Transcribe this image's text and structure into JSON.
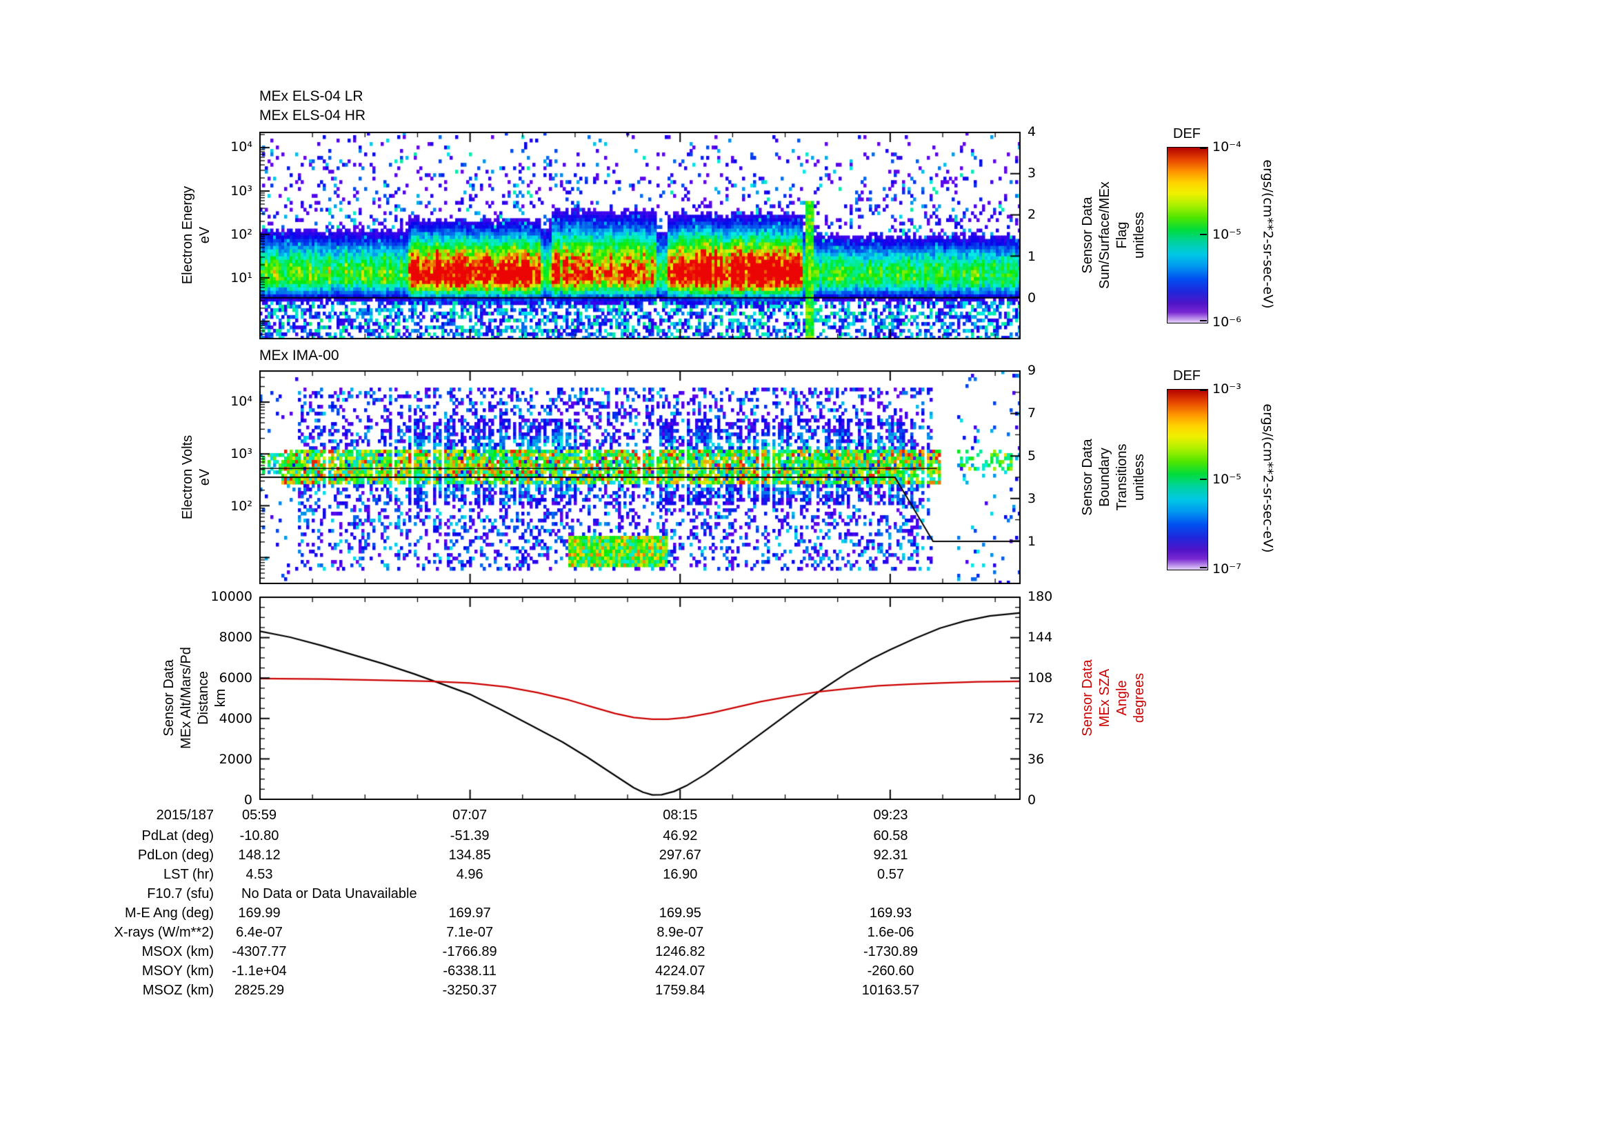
{
  "page": {
    "background": "#ffffff"
  },
  "colors": {
    "axis": "#000000",
    "sza_red": "#cc0000"
  },
  "panel_els": {
    "title_lines": [
      "MEx ELS-04 LR",
      "MEx ELS-04 HR"
    ],
    "y_label": "Electron Energy\neV",
    "y_ticks": [
      {
        "label": "10⁴",
        "log": 4
      },
      {
        "label": "10³",
        "log": 3
      },
      {
        "label": "10²",
        "log": 2
      },
      {
        "label": "10¹",
        "log": 1
      }
    ],
    "right_label": "Sensor Data\nSun/Surface/MEx\nFlag\nunitless",
    "right_ticks": [
      4,
      3,
      2,
      1,
      0
    ]
  },
  "panel_ima": {
    "title": "MEx IMA-00",
    "y_label": "Electron Volts\neV",
    "y_ticks": [
      {
        "label": "10⁴",
        "log": 4
      },
      {
        "label": "10³",
        "log": 3
      },
      {
        "label": "10²",
        "log": 2
      }
    ],
    "right_label": "Sensor Data\nBoundary\nTransitions\nunitless",
    "right_ticks": [
      9,
      7,
      5,
      3,
      1
    ]
  },
  "panel_line": {
    "y_label": "Sensor Data\nMEx Alt/Mars/Pd\nDistance\nkm",
    "y_ticks": [
      10000,
      8000,
      6000,
      4000,
      2000,
      0
    ],
    "right_label": "Sensor Data\nMEx SZA\nAngle\ndegrees",
    "right_ticks": [
      180,
      144,
      108,
      72,
      36,
      0
    ]
  },
  "colorbar_els": {
    "title": "DEF",
    "ticks": [
      "10⁻⁴",
      "10⁻⁵",
      "10⁻⁶"
    ],
    "unit": "ergs/(cm**2-sr-sec-eV)"
  },
  "colorbar_ima": {
    "title": "DEF",
    "ticks": [
      "10⁻³",
      "10⁻⁵",
      "10⁻⁷"
    ],
    "unit": "ergs/(cm**2-sr-sec-eV)"
  },
  "xaxis": {
    "date": "2015/187",
    "tick_labels": [
      "05:59",
      "07:07",
      "08:15",
      "09:23"
    ],
    "tick_minutes": [
      0,
      68,
      136,
      204
    ],
    "minor_step_minutes": 17,
    "t_max_minutes": 246
  },
  "table": {
    "rows": [
      {
        "label": "PdLat (deg)",
        "values": [
          "-10.80",
          "-51.39",
          "46.92",
          "60.58"
        ]
      },
      {
        "label": "PdLon (deg)",
        "values": [
          "148.12",
          "134.85",
          "297.67",
          "92.31"
        ]
      },
      {
        "label": "LST (hr)",
        "values": [
          "4.53",
          "4.96",
          "16.90",
          "0.57"
        ]
      },
      {
        "label": "F10.7 (sfu)",
        "values": [
          "No Data or Data Unavailable"
        ],
        "span": true
      },
      {
        "label": "M-E Ang (deg)",
        "values": [
          "169.99",
          "169.97",
          "169.95",
          "169.93"
        ]
      },
      {
        "label": "X-rays (W/m**2)",
        "values": [
          "6.4e-07",
          "7.1e-07",
          "8.9e-07",
          "1.6e-06"
        ]
      },
      {
        "label": "MSOX (km)",
        "values": [
          "-4307.77",
          "-1766.89",
          "1246.82",
          "-1730.89"
        ]
      },
      {
        "label": "MSOY (km)",
        "values": [
          "-1.1e+04",
          "-6338.11",
          "4224.07",
          "-260.60"
        ]
      },
      {
        "label": "MSOZ (km)",
        "values": [
          "2825.29",
          "-3250.37",
          "1759.84",
          "10163.57"
        ]
      }
    ]
  },
  "chart_data": [
    {
      "type": "heatmap",
      "title": "MEx ELS-04 LR/HR electron energy-time spectrogram",
      "x_axis": {
        "start": "2015/187 05:59",
        "ticks": [
          "05:59",
          "07:07",
          "08:15",
          "09:23"
        ],
        "end_approx": "10:05"
      },
      "y_axis": {
        "label": "Electron Energy (eV)",
        "scale": "log",
        "range_log10": [
          -0.4,
          4.35
        ]
      },
      "z_axis": {
        "label": "DEF ergs/(cm**2-sr-sec-eV)",
        "range": [
          "1e-6",
          "1e-4"
        ]
      },
      "features": [
        "continuous 5-100 eV electron band across whole interval",
        "intense (red, ~1e-4) flux 06:47-07:30 and 08:10-08:55 at 8-30 eV",
        "enhanced yellow/green flux 07:43-08:05",
        "narrow spike up to ~500 eV near 08:57",
        "weaker green/cyan band after 09:00",
        "sparse purple speckle background up to 10^4 eV"
      ],
      "overlay_series": {
        "name": "Sun/Surface/MEx Flag",
        "axis_range": [
          -1,
          4
        ],
        "value": 0
      },
      "paint": {
        "seed": 11,
        "cols": 276,
        "rows": 60,
        "e_top": 4.35,
        "e_bot": -0.4,
        "band": {
          "center": 1.05,
          "sig_lo": 0.28,
          "sig_hi": 0.5
        },
        "base_i": 0.55,
        "hot": [
          {
            "f0": 0.195,
            "f1": 0.37,
            "i": 1.05,
            "sig_hi": 0.55
          },
          {
            "f0": 0.385,
            "f1": 0.52,
            "i": 0.85,
            "sig_hi": 0.65
          },
          {
            "f0": 0.535,
            "f1": 0.715,
            "i": 1.08,
            "sig_hi": 0.6
          },
          {
            "f0": 0.73,
            "f1": 1.01,
            "i": 0.5,
            "sig_hi": 0.45
          }
        ],
        "spike": {
          "f": 0.722,
          "top": 2.75
        },
        "flag_y_frac": 0.8
      }
    },
    {
      "type": "heatmap",
      "title": "MEx IMA-00 ion energy-time spectrogram",
      "x_axis": {
        "start": "2015/187 05:59",
        "ticks": [
          "05:59",
          "07:07",
          "08:15",
          "09:23"
        ],
        "end_approx": "10:05"
      },
      "y_axis": {
        "label": "Electron Volts (eV)",
        "scale": "log",
        "range_log10": [
          0.5,
          4.6
        ]
      },
      "z_axis": {
        "label": "DEF ergs/(cm**2-sr-sec-eV)",
        "range": [
          "1e-7",
          "1e-3"
        ]
      },
      "features": [
        "dense low-flux purple speckle background 06:05-09:25 over ~6-20000 eV",
        "striated 300-1000 eV ion band across the interval with red/yellow segments",
        "vertical cyan/green flux striations 06:30-07:35 and 08:05-09:00",
        "cold low-energy (~10 eV) enhancement 07:38-08:11",
        "sparse data after 09:30"
      ],
      "overlay_series": {
        "name": "Boundary Transitions",
        "axis_range": [
          -1,
          9
        ],
        "steps": [
          [
            0,
            4
          ],
          [
            0.835,
            4
          ],
          [
            0.885,
            1
          ],
          [
            1,
            1
          ]
        ]
      },
      "paint": {
        "seed": 29,
        "cols": 276,
        "rows": 62,
        "e_top": 4.6,
        "e_bot": 0.5,
        "bg": {
          "f0": 0.05,
          "f1": 0.885,
          "e0": 0.75,
          "e1": 4.3,
          "p": 0.3
        },
        "band": {
          "f0": 0.03,
          "f1": 0.895,
          "e0": 2.45,
          "e1": 3.05,
          "p": 0.8
        },
        "striation_zones": [
          {
            "f0": 0.16,
            "f1": 0.42
          },
          {
            "f0": 0.52,
            "f1": 0.86
          }
        ],
        "low_patch": {
          "f0": 0.405,
          "f1": 0.535,
          "e0": 0.8,
          "e1": 1.45
        },
        "right": {
          "f0": 0.915,
          "band_e0": 2.7,
          "band_e1": 3.05
        },
        "line500_log": 2.72,
        "line500_f1": 0.89
      }
    },
    {
      "type": "line",
      "title": "MEx altitude and solar zenith angle",
      "x_tick_labels": [
        "05:59",
        "07:07",
        "08:15",
        "09:23"
      ],
      "x_tick_minutes": [
        0,
        68,
        136,
        204
      ],
      "t_max_minutes": 246,
      "ylim_left": [
        0,
        10000
      ],
      "ylim_right": [
        0,
        180
      ],
      "series": [
        {
          "name": "MEx Alt/Mars/Pd Distance",
          "units": "km",
          "color": "#000000",
          "axis": "left",
          "x_minutes": [
            0,
            10,
            20,
            30,
            40,
            50,
            60,
            68,
            78,
            88,
            98,
            106,
            112,
            117,
            121,
            124,
            127,
            130,
            134,
            138,
            144,
            150,
            158,
            166,
            174,
            182,
            190,
            198,
            204,
            212,
            220,
            228,
            236,
            246
          ],
          "values": [
            8300,
            8000,
            7600,
            7150,
            6700,
            6200,
            5650,
            5200,
            4450,
            3650,
            2850,
            2100,
            1500,
            1000,
            600,
            380,
            250,
            260,
            420,
            700,
            1250,
            1900,
            2800,
            3700,
            4600,
            5450,
            6250,
            6950,
            7400,
            7950,
            8450,
            8800,
            9050,
            9200
          ]
        },
        {
          "name": "MEx SZA Angle",
          "units": "degrees",
          "color": "#cc0000",
          "axis": "right",
          "x_minutes": [
            0,
            20,
            40,
            55,
            68,
            80,
            90,
            100,
            108,
            115,
            121,
            127,
            132,
            138,
            146,
            154,
            162,
            170,
            180,
            190,
            200,
            210,
            220,
            232,
            246
          ],
          "values": [
            107.5,
            107,
            106,
            105,
            103.5,
            100,
            95,
            88.5,
            82,
            76.5,
            73,
            71.5,
            71.5,
            73,
            77,
            82,
            87,
            91,
            95.5,
            98.5,
            101,
            102.5,
            103.5,
            104.5,
            105
          ]
        }
      ]
    }
  ]
}
